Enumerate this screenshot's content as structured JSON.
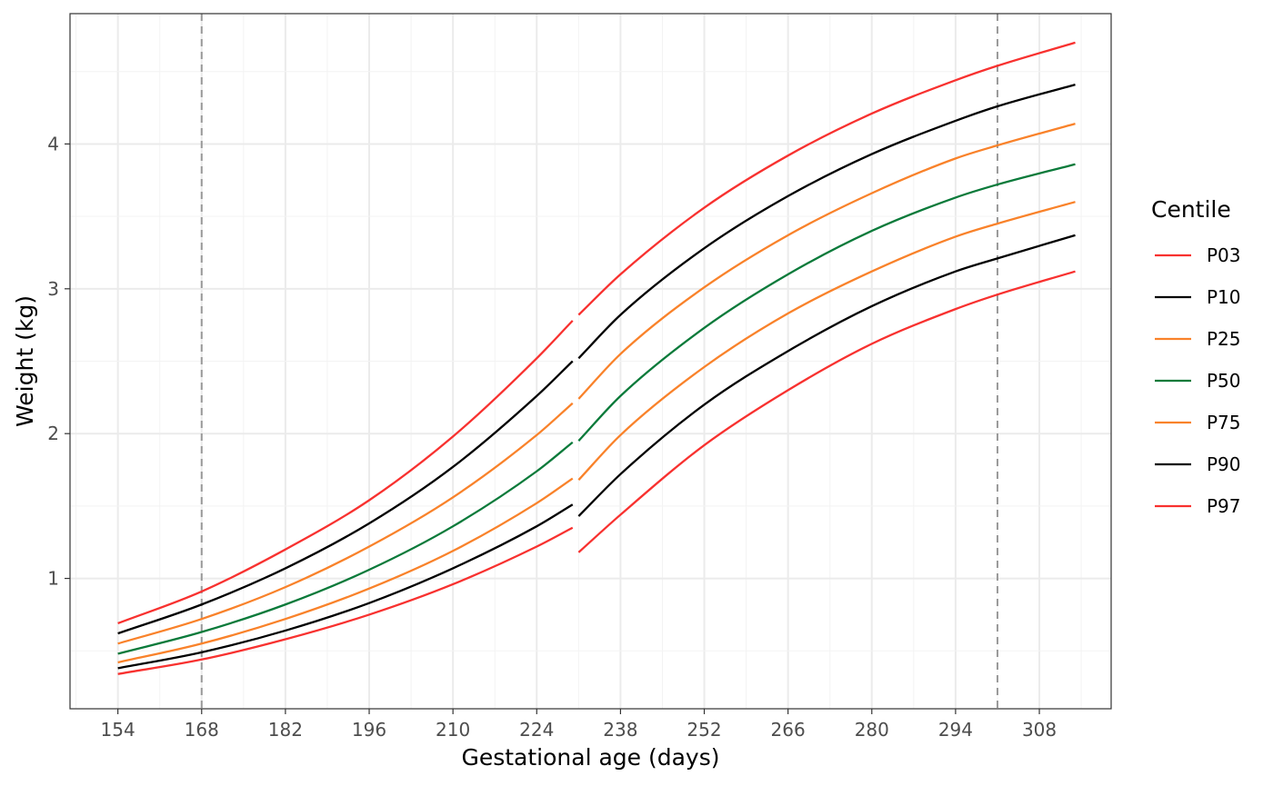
{
  "chart_data": {
    "type": "line",
    "title": "",
    "xlabel": "Gestational age (days)",
    "ylabel": "Weight (kg)",
    "xlim": [
      146,
      320
    ],
    "ylim": [
      0.1,
      4.9
    ],
    "x_ticks": [
      154,
      168,
      182,
      196,
      210,
      224,
      238,
      252,
      266,
      280,
      294,
      308
    ],
    "y_ticks": [
      1,
      2,
      3,
      4
    ],
    "grid": true,
    "reference_lines_x": [
      168,
      301
    ],
    "legend": {
      "title": "Centile",
      "position": "right"
    },
    "segments": [
      {
        "x_start": 154,
        "x_end": 230
      },
      {
        "x_start": 231,
        "x_end": 314
      }
    ],
    "series": [
      {
        "name": "P03",
        "color": "#F8312F",
        "x": [
          154,
          168,
          182,
          196,
          210,
          224,
          230
        ],
        "y": [
          0.34,
          0.44,
          0.58,
          0.75,
          0.96,
          1.22,
          1.35
        ],
        "x2": [
          231,
          238,
          252,
          266,
          280,
          294,
          301,
          314
        ],
        "y2": [
          1.18,
          1.44,
          1.92,
          2.3,
          2.62,
          2.86,
          2.96,
          3.12
        ]
      },
      {
        "name": "P10",
        "color": "#000000",
        "x": [
          154,
          168,
          182,
          196,
          210,
          224,
          230
        ],
        "y": [
          0.38,
          0.49,
          0.64,
          0.83,
          1.07,
          1.36,
          1.51
        ],
        "x2": [
          231,
          238,
          252,
          266,
          280,
          294,
          301,
          314
        ],
        "y2": [
          1.43,
          1.72,
          2.2,
          2.57,
          2.88,
          3.12,
          3.21,
          3.37
        ]
      },
      {
        "name": "P25",
        "color": "#F9822A",
        "x": [
          154,
          168,
          182,
          196,
          210,
          224,
          230
        ],
        "y": [
          0.42,
          0.55,
          0.72,
          0.93,
          1.19,
          1.52,
          1.69
        ],
        "x2": [
          231,
          238,
          252,
          266,
          280,
          294,
          301,
          314
        ],
        "y2": [
          1.68,
          1.99,
          2.46,
          2.83,
          3.12,
          3.36,
          3.45,
          3.6
        ]
      },
      {
        "name": "P50",
        "color": "#0A7A3A",
        "x": [
          154,
          168,
          182,
          196,
          210,
          224,
          230
        ],
        "y": [
          0.48,
          0.63,
          0.82,
          1.06,
          1.36,
          1.74,
          1.94
        ],
        "x2": [
          231,
          238,
          252,
          266,
          280,
          294,
          301,
          314
        ],
        "y2": [
          1.95,
          2.26,
          2.73,
          3.1,
          3.4,
          3.63,
          3.72,
          3.86
        ]
      },
      {
        "name": "P75",
        "color": "#F9822A",
        "x": [
          154,
          168,
          182,
          196,
          210,
          224,
          230
        ],
        "y": [
          0.55,
          0.72,
          0.94,
          1.22,
          1.56,
          1.99,
          2.21
        ],
        "x2": [
          231,
          238,
          252,
          266,
          280,
          294,
          301,
          314
        ],
        "y2": [
          2.24,
          2.55,
          3.01,
          3.37,
          3.66,
          3.9,
          3.99,
          4.14
        ]
      },
      {
        "name": "P90",
        "color": "#000000",
        "x": [
          154,
          168,
          182,
          196,
          210,
          224,
          230
        ],
        "y": [
          0.62,
          0.82,
          1.07,
          1.38,
          1.77,
          2.26,
          2.5
        ],
        "x2": [
          231,
          238,
          252,
          266,
          280,
          294,
          301,
          314
        ],
        "y2": [
          2.52,
          2.82,
          3.28,
          3.64,
          3.93,
          4.16,
          4.26,
          4.41
        ]
      },
      {
        "name": "P97",
        "color": "#F8312F",
        "x": [
          154,
          168,
          182,
          196,
          210,
          224,
          230
        ],
        "y": [
          0.69,
          0.91,
          1.2,
          1.54,
          1.98,
          2.52,
          2.78
        ],
        "x2": [
          231,
          238,
          252,
          266,
          280,
          294,
          301,
          314
        ],
        "y2": [
          2.82,
          3.1,
          3.56,
          3.92,
          4.21,
          4.44,
          4.54,
          4.7
        ]
      }
    ]
  }
}
